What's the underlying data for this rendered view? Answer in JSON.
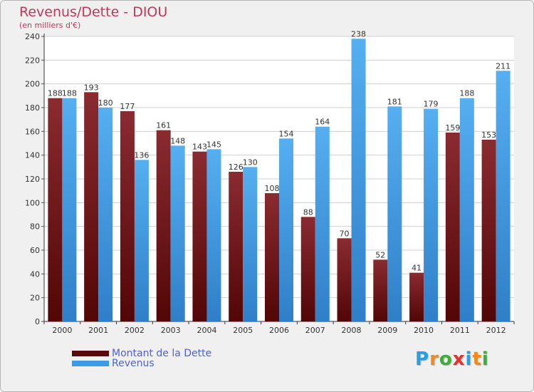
{
  "chart_data": {
    "type": "bar",
    "title": "Revenus/Dette - DIOU",
    "subtitle": "(en milliers d'€)",
    "categories": [
      "2000",
      "2001",
      "2002",
      "2003",
      "2004",
      "2005",
      "2006",
      "2007",
      "2008",
      "2009",
      "2010",
      "2011",
      "2012"
    ],
    "series": [
      {
        "name": "Montant de la Dette",
        "color": "#7a1f22",
        "values": [
          188,
          193,
          177,
          161,
          143,
          126,
          108,
          88,
          70,
          52,
          41,
          159,
          153
        ]
      },
      {
        "name": "Revenus",
        "color": "#3d9be6",
        "values": [
          188,
          180,
          136,
          148,
          145,
          130,
          154,
          164,
          238,
          181,
          179,
          188,
          211
        ]
      }
    ],
    "ylim": [
      0,
      240
    ],
    "yticks": [
      0,
      20,
      40,
      60,
      80,
      100,
      120,
      140,
      160,
      180,
      200,
      220,
      240
    ],
    "grid": true,
    "legend_position": "bottom-left"
  },
  "brand": {
    "letters": [
      "P",
      "r",
      "o",
      "x",
      "i",
      "t",
      "i"
    ],
    "colors": [
      "#2a9fe0",
      "#f08a1c",
      "#3dae3a",
      "#e2342f",
      "#2a9fe0",
      "#f08a1c",
      "#3dae3a"
    ]
  }
}
